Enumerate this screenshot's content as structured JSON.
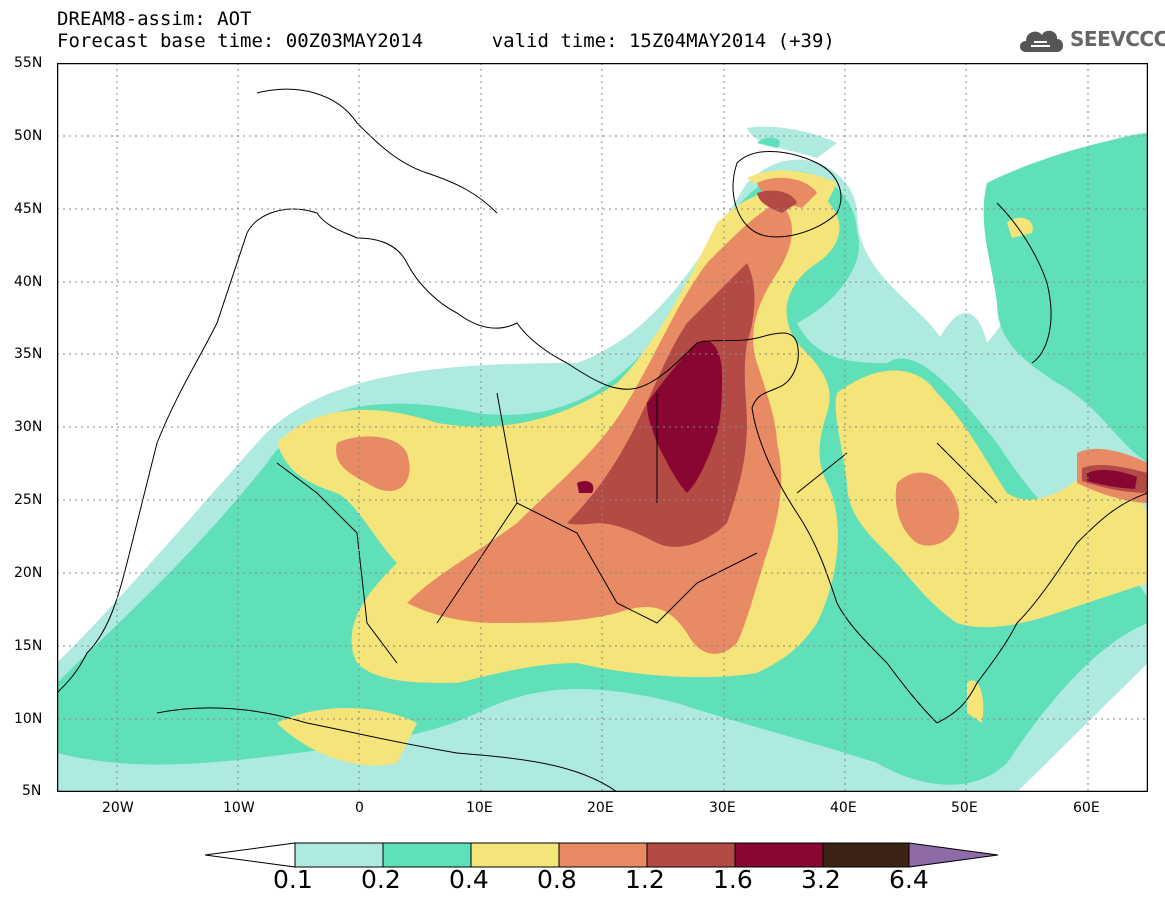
{
  "header": {
    "title": "DREAM8-assim: AOT",
    "base_time_label": "Forecast base time: 00Z03MAY2014",
    "valid_time_label": "valid time: 15Z04MAY2014 (+39)"
  },
  "logo": {
    "text": "SEEVCCC",
    "icon": "cloud-icon"
  },
  "map": {
    "lat_labels": [
      "55N",
      "50N",
      "45N",
      "40N",
      "35N",
      "30N",
      "25N",
      "20N",
      "15N",
      "10N",
      "5N"
    ],
    "lon_labels": [
      "20W",
      "10W",
      "0",
      "10E",
      "20E",
      "30E",
      "40E",
      "50E",
      "60E"
    ],
    "grid": true
  },
  "colorbar": {
    "labels": [
      "0.1",
      "0.2",
      "0.4",
      "0.8",
      "1.2",
      "1.6",
      "3.2",
      "6.4"
    ],
    "colors": [
      "#ffffff",
      "#aeeadf",
      "#5fe0b8",
      "#f5e47a",
      "#e88a64",
      "#b34a44",
      "#8a0632",
      "#3b2416",
      "#8e6aa6"
    ]
  }
}
